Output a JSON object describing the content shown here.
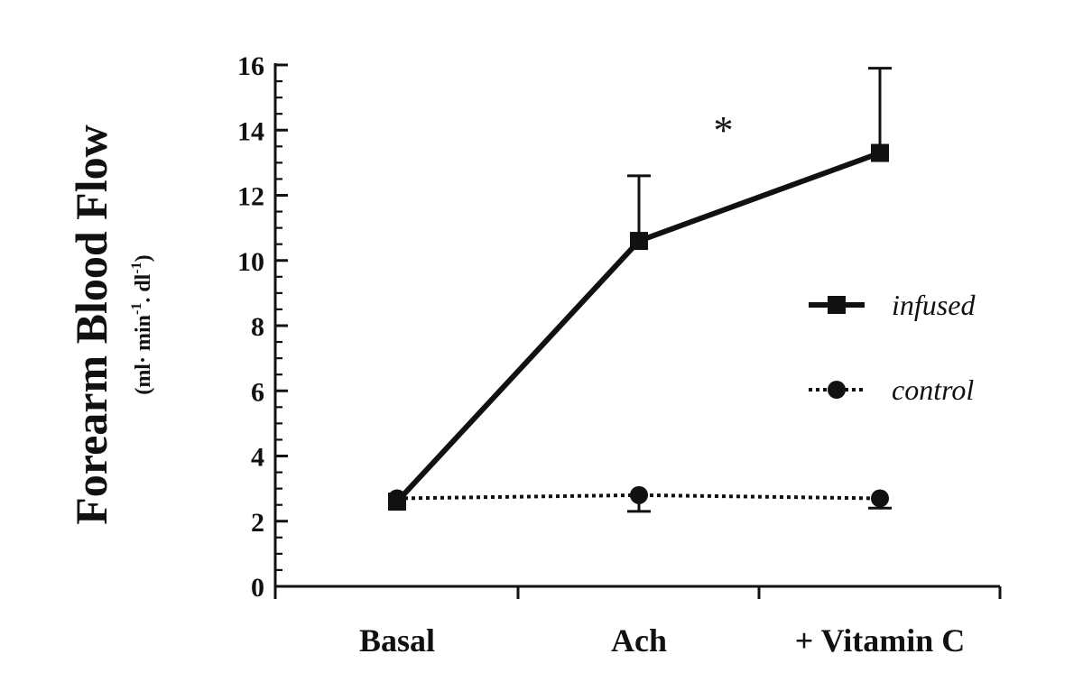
{
  "chart_data": {
    "type": "line",
    "title": "",
    "categories": [
      "Basal",
      "Ach",
      "+ Vitamin C"
    ],
    "ylabel": "Forearm Blood Flow",
    "ylabel_units": {
      "base": "(ml· min",
      "exp1": "-1",
      "mid": ". dl",
      "exp2": "-1",
      "end": ")"
    },
    "ylim": [
      0,
      16
    ],
    "yticks": [
      "0",
      "2",
      "4",
      "6",
      "8",
      "10",
      "12",
      "14",
      "16"
    ],
    "grid": false,
    "legend_position": "right",
    "series": [
      {
        "name": "infused",
        "marker": "square",
        "line_style": "solid",
        "values": [
          2.6,
          10.6,
          13.3
        ],
        "error_upper": [
          2.6,
          12.6,
          15.9
        ],
        "error_lower": [
          2.6,
          10.6,
          13.3
        ]
      },
      {
        "name": "control",
        "marker": "circle",
        "line_style": "dotted",
        "values": [
          2.7,
          2.8,
          2.7
        ],
        "error_upper": [
          2.7,
          2.8,
          2.7
        ],
        "error_lower": [
          2.7,
          2.3,
          2.4
        ]
      }
    ],
    "annotations": [
      {
        "text": "*",
        "x_position": 1.35,
        "y": 14.2
      }
    ]
  }
}
